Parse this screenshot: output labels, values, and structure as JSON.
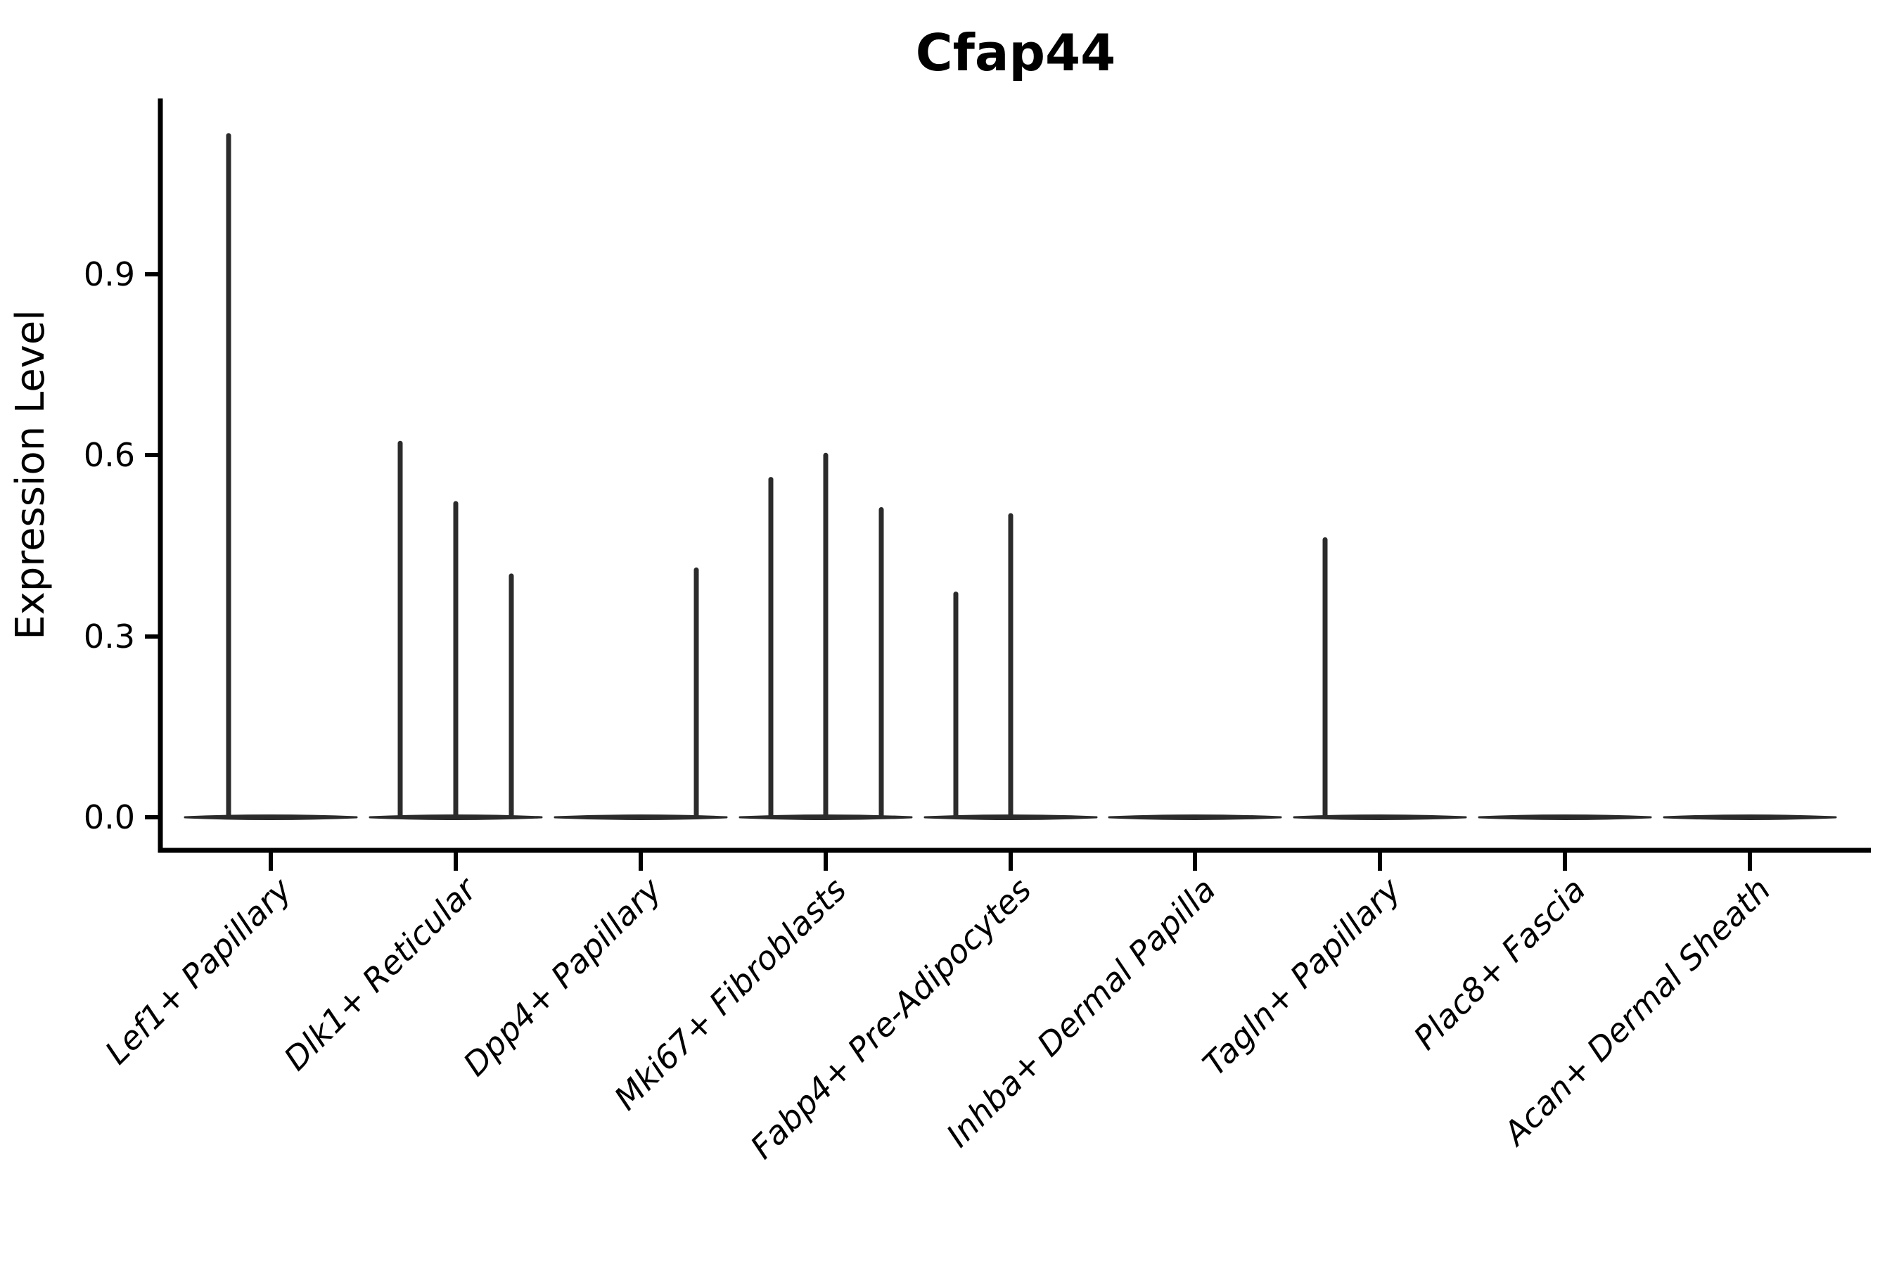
{
  "chart_data": {
    "type": "violin",
    "title": "Cfap44",
    "xlabel": "",
    "ylabel": "Expression Level",
    "yticks": [
      0.0,
      0.3,
      0.6,
      0.9
    ],
    "ytick_labels": [
      "0.0",
      "0.3",
      "0.6",
      "0.9"
    ],
    "ylim": [
      0,
      1.19
    ],
    "grid": false,
    "legend": "none",
    "categories": [
      "Lef1+ Papillary",
      "Dlk1+ Reticular",
      "Dpp4+ Papillary",
      "Mki67+ Fibroblasts",
      "Fabp4+ Pre-Adipocytes",
      "Inhba+ Dermal Papilla",
      "Tagln+ Papillary",
      "Plac8+ Fascia",
      "Acan+ Dermal Sheath"
    ],
    "violins": [
      {
        "category": "Lef1+ Papillary",
        "baseline_value": 0.0,
        "spikes": [
          {
            "dx": -60,
            "max": 1.13
          }
        ]
      },
      {
        "category": "Dlk1+ Reticular",
        "baseline_value": 0.0,
        "spikes": [
          {
            "dx": -79,
            "max": 0.62
          },
          {
            "dx": 0,
            "max": 0.52
          },
          {
            "dx": 79,
            "max": 0.4
          }
        ]
      },
      {
        "category": "Dpp4+ Papillary",
        "baseline_value": 0.0,
        "spikes": [
          {
            "dx": 79,
            "max": 0.41
          }
        ]
      },
      {
        "category": "Mki67+ Fibroblasts",
        "baseline_value": 0.0,
        "spikes": [
          {
            "dx": -78,
            "max": 0.56
          },
          {
            "dx": 0,
            "max": 0.6
          },
          {
            "dx": 79,
            "max": 0.51
          }
        ]
      },
      {
        "category": "Fabp4+ Pre-Adipocytes",
        "baseline_value": 0.0,
        "spikes": [
          {
            "dx": -78,
            "max": 0.37
          },
          {
            "dx": 0,
            "max": 0.5
          }
        ]
      },
      {
        "category": "Inhba+ Dermal Papilla",
        "baseline_value": 0.0,
        "spikes": []
      },
      {
        "category": "Tagln+ Papillary",
        "baseline_value": 0.0,
        "spikes": [
          {
            "dx": -78,
            "max": 0.46
          }
        ]
      },
      {
        "category": "Plac8+ Fascia",
        "baseline_value": 0.0,
        "spikes": []
      },
      {
        "category": "Acan+ Dermal Sheath",
        "baseline_value": 0.0,
        "spikes": []
      }
    ],
    "colors": {
      "line": "#2b2b2b",
      "axis": "#000000",
      "text": "#000000",
      "background": "#ffffff"
    }
  }
}
